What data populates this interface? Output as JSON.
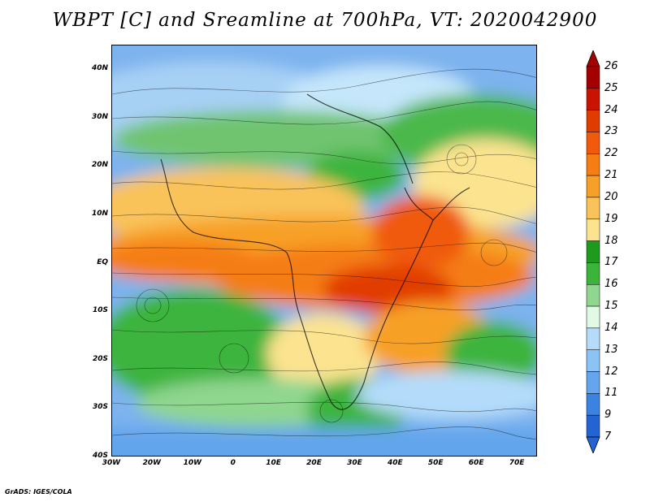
{
  "title": "WBPT [C] and Sreamline at 700hPa, VT: 2020042900",
  "footer": "GrADS: IGES/COLA",
  "map": {
    "lon_range": [
      -30,
      75
    ],
    "lat_range": [
      -40,
      45
    ],
    "lat_ticks": [
      "40N",
      "30N",
      "20N",
      "10N",
      "EQ",
      "10S",
      "20S",
      "30S",
      "40S"
    ],
    "lon_ticks": [
      "30W",
      "20W",
      "10W",
      "0",
      "10E",
      "20E",
      "30E",
      "40E",
      "50E",
      "60E",
      "70E"
    ]
  },
  "colorbar": {
    "labels": [
      "26",
      "25",
      "24",
      "23",
      "22",
      "21",
      "20",
      "19",
      "18",
      "17",
      "16",
      "15",
      "14",
      "13",
      "12",
      "11",
      "9",
      "7"
    ],
    "colors": [
      "#a50000",
      "#c81400",
      "#e13c00",
      "#f05a0a",
      "#f57d14",
      "#f7a028",
      "#f9c35a",
      "#fbe38f",
      "#1e9b1e",
      "#3cb43c",
      "#8fd68f",
      "#e1fae6",
      "#b4dcfa",
      "#8cc3f5",
      "#64a5ec",
      "#3c82e1",
      "#2364d2"
    ],
    "top_cap_color": "#a50000",
    "bottom_cap_color": "#2364d2"
  }
}
